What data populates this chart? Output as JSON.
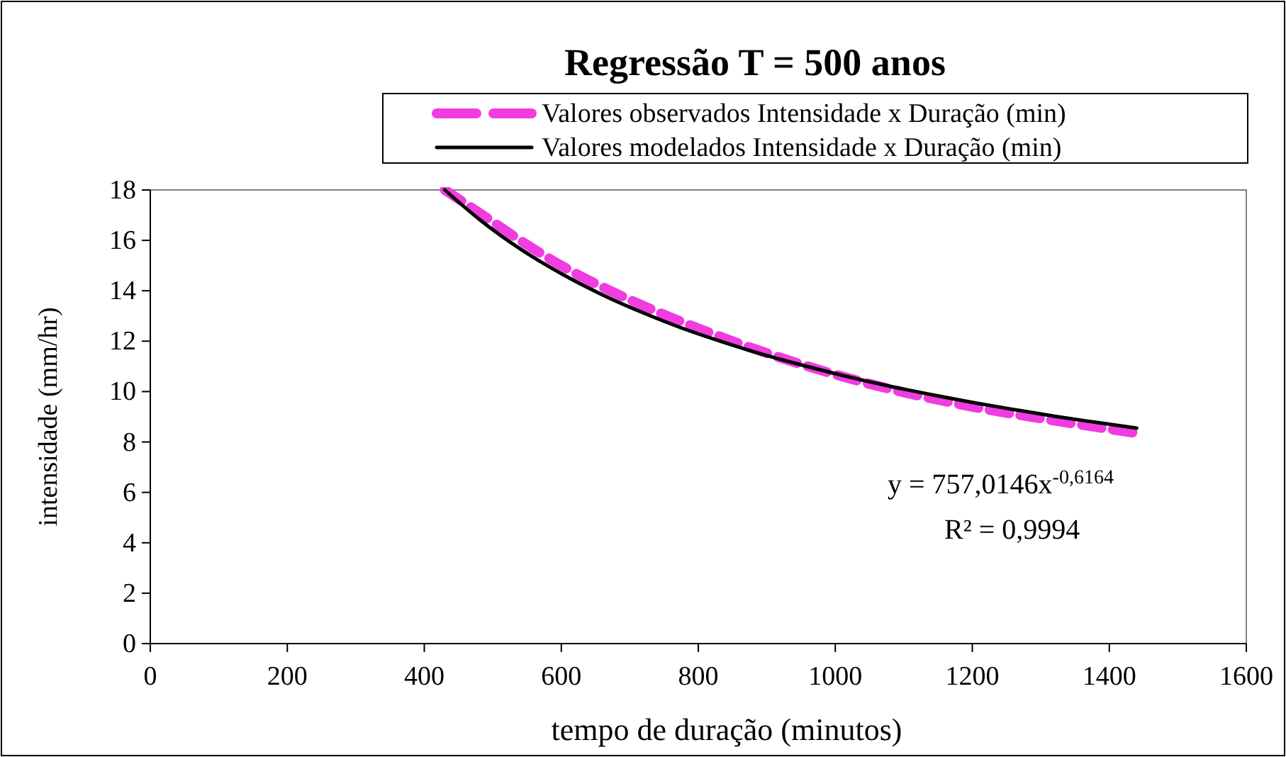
{
  "chart_data": {
    "type": "line",
    "title": "Regressão T = 500 anos",
    "xlabel": "tempo de duração (minutos)",
    "ylabel": "intensidade (mm/hr)",
    "xlim": [
      0,
      1600
    ],
    "xticks": [
      0,
      200,
      400,
      600,
      800,
      1000,
      1200,
      1400,
      1600
    ],
    "ylim": [
      0,
      18
    ],
    "yticks": [
      0,
      2,
      4,
      6,
      8,
      10,
      12,
      14,
      16,
      18
    ],
    "grid": false,
    "legend": "top right",
    "series": [
      {
        "name": "Valores observados Intensidade x Duração (min)",
        "color": "#f03ce0",
        "line_style": "dashed",
        "x": [
          430,
          480,
          540,
          600,
          720,
          840,
          960,
          1080,
          1200,
          1320,
          1440
        ],
        "values": [
          18.0,
          17.1,
          16.0,
          15.0,
          13.4,
          12.1,
          11.0,
          10.1,
          9.4,
          8.85,
          8.35
        ]
      },
      {
        "name": "Valores modelados Intensidade x Duração (min)",
        "color": "#000000",
        "line_style": "solid",
        "x": [
          430,
          480,
          540,
          600,
          660,
          720,
          780,
          840,
          900,
          960,
          1020,
          1080,
          1140,
          1200,
          1260,
          1320,
          1380,
          1440
        ],
        "values": [
          18.0,
          16.84,
          15.66,
          14.68,
          13.84,
          13.12,
          12.48,
          11.93,
          11.43,
          10.99,
          10.58,
          10.21,
          9.88,
          9.57,
          9.29,
          9.02,
          8.78,
          8.55
        ]
      }
    ],
    "annotations": [
      "y = 757,0146x$^{-0,6164}$",
      "R² = 0,9994"
    ]
  }
}
